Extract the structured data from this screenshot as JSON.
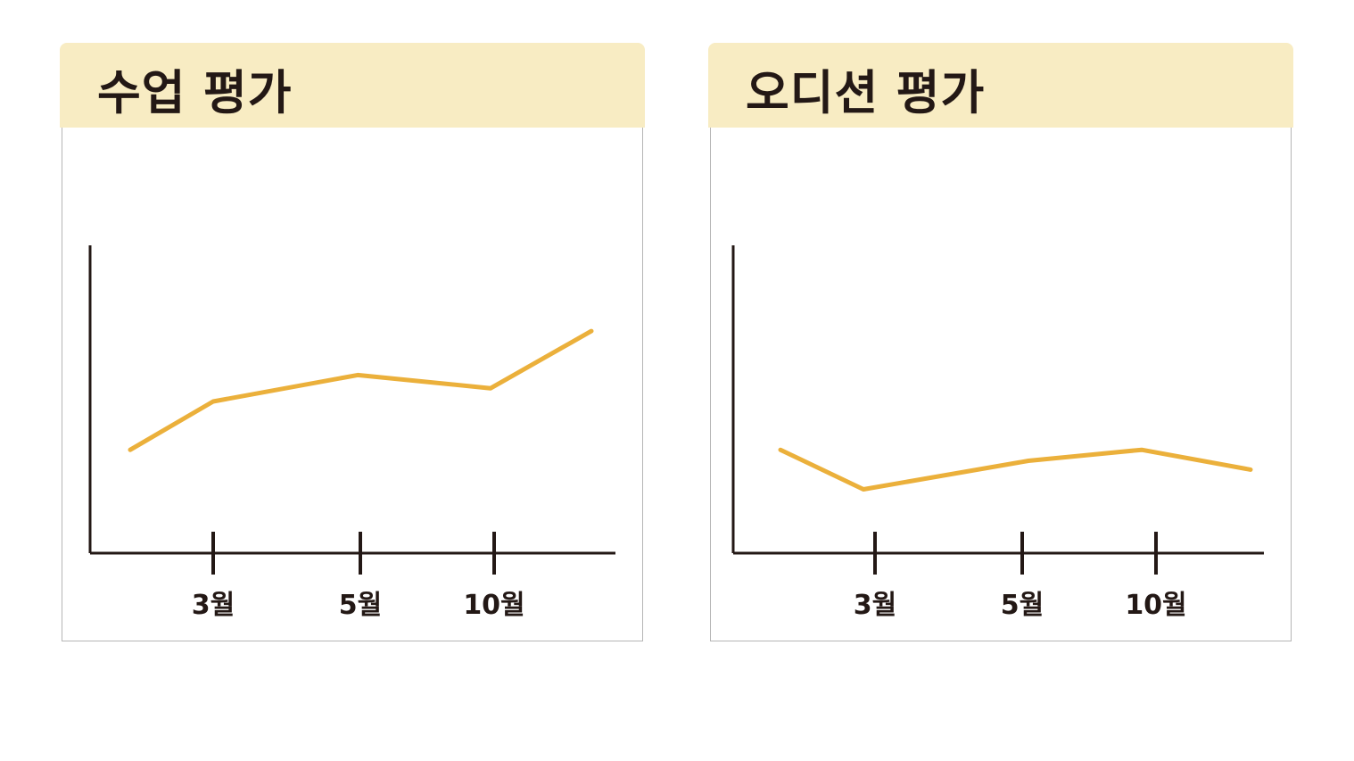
{
  "panels": [
    {
      "title": "수업 평가"
    },
    {
      "title": "오디션 평가"
    }
  ],
  "colors": {
    "header_bg": "#f8ecc3",
    "line": "#ebb03b",
    "axis": "#231815",
    "border": "#b5b5b5"
  },
  "chart_data": [
    {
      "type": "line",
      "title": "수업 평가",
      "x_ticks": [
        "3월",
        "5월",
        "10월"
      ],
      "x": [
        0,
        1,
        2,
        3,
        4
      ],
      "values": [
        47,
        69,
        81,
        75,
        101
      ],
      "ylim": [
        0,
        140
      ],
      "grid": false
    },
    {
      "type": "line",
      "title": "오디션 평가",
      "x_ticks": [
        "3월",
        "5월",
        "10월"
      ],
      "x": [
        0,
        1,
        2,
        3,
        4
      ],
      "values": [
        47,
        29,
        42,
        47,
        38
      ],
      "ylim": [
        0,
        140
      ],
      "grid": false
    }
  ]
}
